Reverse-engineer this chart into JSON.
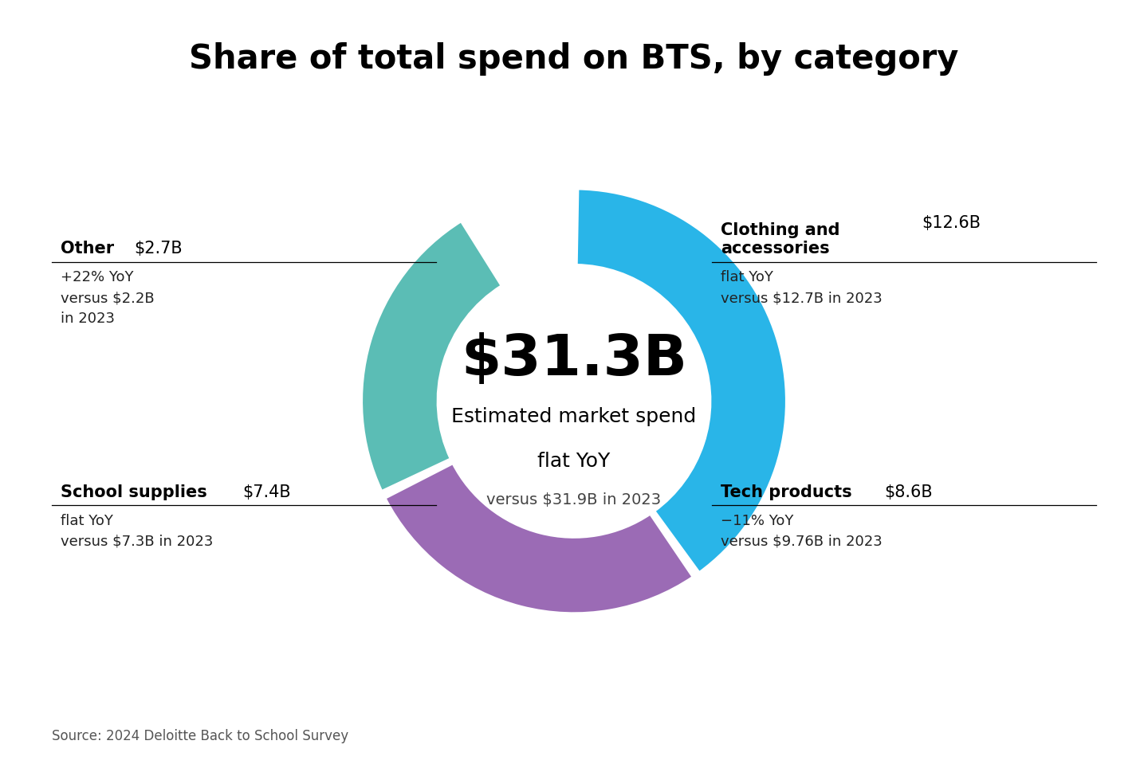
{
  "title": "Share of total spend on BTS, by category",
  "title_fontsize": 30,
  "center_value": "$31.3B",
  "center_label_line1": "Estimated market spend",
  "center_label_line2": "flat YoY",
  "center_label_line3": "versus $31.9B in 2023",
  "segments": [
    {
      "label": "Clothing and accessories",
      "value_label": "$12.6B",
      "value": 12.6,
      "color": "#29B5E8"
    },
    {
      "label": "Tech products",
      "value_label": "$8.6B",
      "value": 8.6,
      "color": "#9B6BB5"
    },
    {
      "label": "School supplies",
      "value_label": "$7.4B",
      "value": 7.4,
      "color": "#5BBDB5"
    },
    {
      "label": "Other",
      "value_label": "$2.7B",
      "value": 2.7,
      "color": "#FFFFFF"
    }
  ],
  "right_top_label_bold": "Clothing and\naccessories ",
  "right_top_label_value": "$12.6B",
  "right_top_sub": "flat YoY\nversus $12.7B in 2023",
  "right_bot_label_bold": "Tech products ",
  "right_bot_label_value": "$8.6B",
  "right_bot_sub": "−11% YoY\nversus $9.76B in 2023",
  "left_top_label_bold": "Other ",
  "left_top_label_value": "$2.7B",
  "left_top_sub": "+22% YoY\nversus $2.2B\nin 2023",
  "left_bot_label_bold": "School supplies ",
  "left_bot_label_value": "$7.4B",
  "left_bot_sub": "flat YoY\nversus $7.3B in 2023",
  "source_text": "Source: 2024 Deloitte Back to School Survey",
  "background_color": "#FFFFFF"
}
